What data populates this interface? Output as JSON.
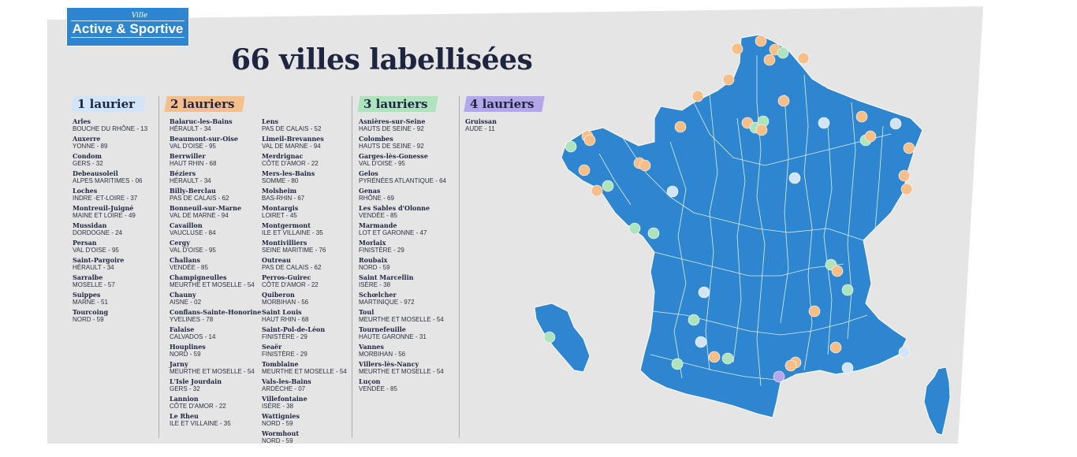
{
  "logo": {
    "small": "Ville",
    "big": "Active & Sportive"
  },
  "headline": "66 villes labellisées",
  "colors": {
    "panel": "#e5e5e5",
    "map": "#2d86cf",
    "one_laurel": "#d2e4f7",
    "two_laurels": "#f6bf8a",
    "three_laurels": "#aee4bd",
    "four_laurels": "#b3a6ec"
  },
  "marker_colors": [
    "#d2e4f7",
    "#f6bf8a",
    "#aee4bd",
    "#b3a6ec"
  ],
  "levels": [
    {
      "label": "1 laurier",
      "color": "#d2e4f7",
      "cities": [
        {
          "name": "Arles",
          "dept": "BOUCHE DU RHÔNE - 13"
        },
        {
          "name": "Auxerre",
          "dept": "YONNE - 89"
        },
        {
          "name": "Condom",
          "dept": "GERS - 32"
        },
        {
          "name": "Debeausoleil",
          "dept": "ALPES MARITIMES - 06"
        },
        {
          "name": "Loches",
          "dept": "INDRE -ET-LOIRE - 37"
        },
        {
          "name": "Montreuil-Juigné",
          "dept": "MAINE ET LOIRE - 49"
        },
        {
          "name": "Mussidan",
          "dept": "DORDOGNE - 24"
        },
        {
          "name": "Persan",
          "dept": "VAL D'OISE - 95"
        },
        {
          "name": "Saint-Pargoire",
          "dept": "HÉRAULT - 34"
        },
        {
          "name": "Sarralbe",
          "dept": "MOSELLE - 57"
        },
        {
          "name": "Suippes",
          "dept": "MARNE - 51"
        },
        {
          "name": "Tourcoing",
          "dept": "NORD - 59"
        }
      ]
    },
    {
      "label": "2 lauriers",
      "color": "#f6bf8a",
      "cities": [
        {
          "name": "Balaruc-les-Bains",
          "dept": "HÉRAULT - 34"
        },
        {
          "name": "Beaumont-sur-Oise",
          "dept": "VAL D'OISE - 95"
        },
        {
          "name": "Berrwiller",
          "dept": "HAUT RHIN - 68"
        },
        {
          "name": "Béziers",
          "dept": "HÉRAULT - 34"
        },
        {
          "name": "Billy-Berclau",
          "dept": "PAS DE CALAIS - 62"
        },
        {
          "name": "Bonneuil-sur-Marne",
          "dept": "VAL DE MARNE - 94"
        },
        {
          "name": "Cavaillon",
          "dept": "VAUCLUSE - 84"
        },
        {
          "name": "Cergy",
          "dept": "VAL D'OISE - 95"
        },
        {
          "name": "Challans",
          "dept": "VENDÉE - 85"
        },
        {
          "name": "Champigneulles",
          "dept": "MEURTHE ET MOSELLE - 54"
        },
        {
          "name": "Chauny",
          "dept": "AISNE - 02"
        },
        {
          "name": "Conflans-Sainte-Honorine",
          "dept": "YVELINES - 78"
        },
        {
          "name": "Falaise",
          "dept": "CALVADOS - 14"
        },
        {
          "name": "Houplines",
          "dept": "NORD - 59"
        },
        {
          "name": "Jarny",
          "dept": "MEURTHE ET MOSELLE - 54"
        },
        {
          "name": "L'Isle Jourdain",
          "dept": "GERS - 32"
        },
        {
          "name": "Lannion",
          "dept": "CÔTE D'AMOR - 22"
        },
        {
          "name": "Le Rheu",
          "dept": "ILE ET VILLAINE - 35"
        },
        {
          "name": "Lens",
          "dept": "PAS DE CALAIS - 52"
        },
        {
          "name": "Limeil-Brevannes",
          "dept": "VAL DE MARNE - 94"
        },
        {
          "name": "Merdrignac",
          "dept": "CÔTE D'AMOR - 22"
        },
        {
          "name": "Mers-les-Bains",
          "dept": "SOMME - 80"
        },
        {
          "name": "Molsheim",
          "dept": "BAS-RHIN - 67"
        },
        {
          "name": "Montargis",
          "dept": "LOIRET - 45"
        },
        {
          "name": "Montgermont",
          "dept": "ILE ET VILLAINE - 35"
        },
        {
          "name": "Montivilliers",
          "dept": "SEINE MARITIME - 76"
        },
        {
          "name": "Outreau",
          "dept": "PAS DE CALAIS - 62"
        },
        {
          "name": "Perros-Guirec",
          "dept": "CÔTE D'AMOR - 22"
        },
        {
          "name": "Quiberon",
          "dept": "MORBIHAN - 56"
        },
        {
          "name": "Saint Louis",
          "dept": "HAUT RHIN - 68"
        },
        {
          "name": "Saint-Pol-de-Léon",
          "dept": "FINISTÈRE - 29"
        },
        {
          "name": "Seaër",
          "dept": "FINISTÈRE - 29"
        },
        {
          "name": "Tomblaine",
          "dept": "MEURTHE ET MOSELLE - 54"
        },
        {
          "name": "Vals-les-Bains",
          "dept": "ARDÈCHE - 07"
        },
        {
          "name": "Villefontaine",
          "dept": "ISÈRE - 38"
        },
        {
          "name": "Wattignies",
          "dept": "NORD - 59"
        },
        {
          "name": "Wormhout",
          "dept": "NORD - 59"
        }
      ]
    },
    {
      "label": "3 lauriers",
      "color": "#aee4bd",
      "cities": [
        {
          "name": "Asnières-sur-Seine",
          "dept": "HAUTS DE SEINE - 92"
        },
        {
          "name": "Colombes",
          "dept": "HAUTS DE SEINE - 92"
        },
        {
          "name": "Garges-lès-Gonesse",
          "dept": "VAL D'OISE - 95"
        },
        {
          "name": "Gelos",
          "dept": "PYRÉNÉES ATLANTIQUE - 64"
        },
        {
          "name": "Genas",
          "dept": "RHÔNE - 69"
        },
        {
          "name": "Les Sables d'Olonne",
          "dept": "VENDÉE - 85"
        },
        {
          "name": "Marmande",
          "dept": "LOT ET GARONNE - 47"
        },
        {
          "name": "Morlaix",
          "dept": "FINISTÈRE - 29"
        },
        {
          "name": "Roubaix",
          "dept": "NORD - 59"
        },
        {
          "name": "Saint Marcellin",
          "dept": "ISÈRE - 38"
        },
        {
          "name": "Schœlcher",
          "dept": "MARTINIQUE - 972"
        },
        {
          "name": "Toul",
          "dept": "MEURTHE ET MOSELLE - 54"
        },
        {
          "name": "Tournefeuille",
          "dept": "HAUTE GARONNE - 31"
        },
        {
          "name": "Vannes",
          "dept": "MORBIHAN - 56"
        },
        {
          "name": "Villers-lès-Nancy",
          "dept": "MEURTHE ET MOSELLE - 54"
        },
        {
          "name": "Luçon",
          "dept": "VENDÉE - 85"
        }
      ]
    },
    {
      "label": "4 lauriers",
      "color": "#b3a6ec",
      "cities": [
        {
          "name": "Gruissan",
          "dept": "AUDE - 11"
        }
      ]
    }
  ]
}
